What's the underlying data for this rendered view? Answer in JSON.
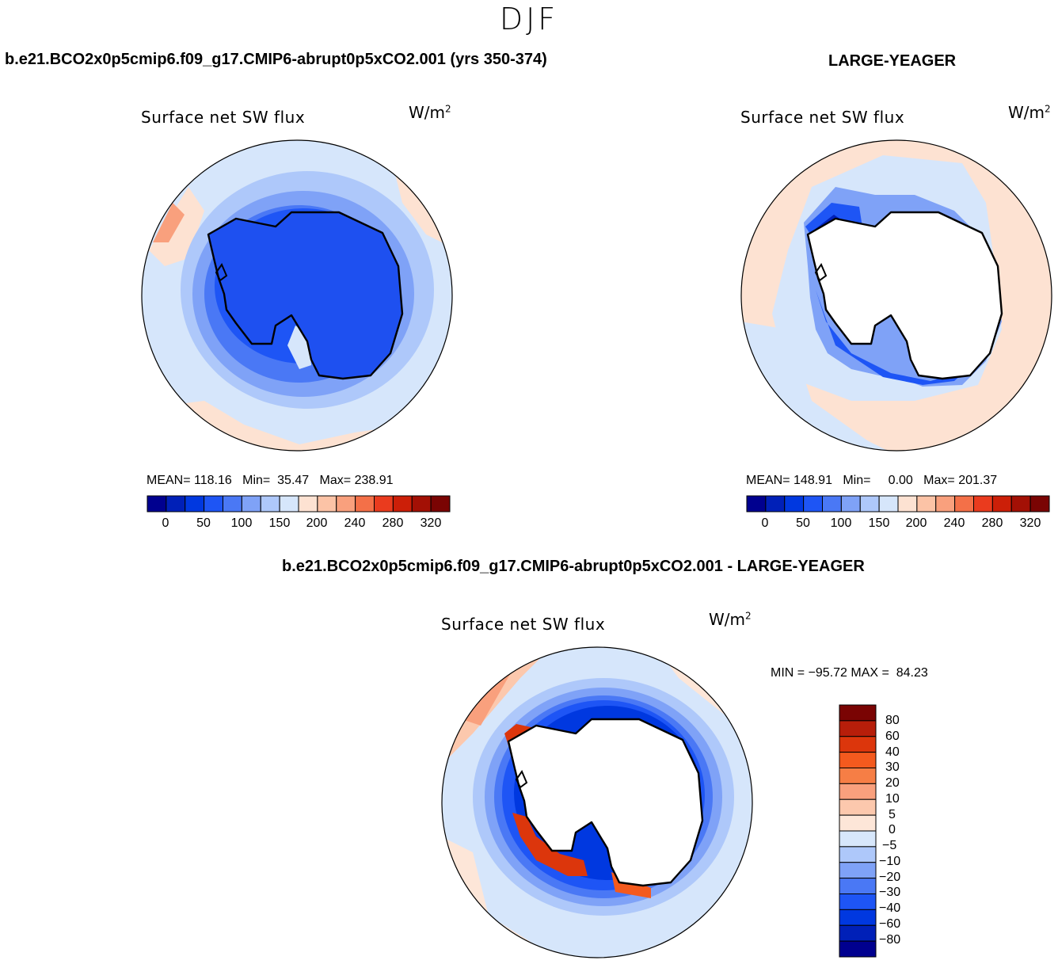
{
  "figure": {
    "season": "DJF",
    "diff_title": "b.e21.BCO2x0p5cmip6.f09_g17.CMIP6-abrupt0p5xCO2.001 - LARGE-YEAGER"
  },
  "panels": [
    {
      "case": "b.e21.BCO2x0p5cmip6.f09_g17.CMIP6-abrupt0p5xCO2.001 (yrs 350-374)",
      "variable": "Surface net SW flux",
      "units_base": "W/m",
      "units_exp": "2",
      "stats": {
        "mean_label": "MEAN=",
        "mean": "118.16",
        "min_label": "Min=",
        "min": "35.47",
        "max_label": "Max=",
        "max": "238.91"
      },
      "colorbar_labels": [
        "0",
        "50",
        "100",
        "150",
        "200",
        "240",
        "280",
        "320"
      ]
    },
    {
      "case": "LARGE-YEAGER",
      "variable": "Surface net SW flux",
      "units_base": "W/m",
      "units_exp": "2",
      "stats": {
        "mean_label": "MEAN=",
        "mean": "148.91",
        "min_label": "Min=",
        "min": "0.00",
        "max_label": "Max=",
        "max": "201.37"
      },
      "colorbar_labels": [
        "0",
        "50",
        "100",
        "150",
        "200",
        "240",
        "280",
        "320"
      ]
    },
    {
      "variable": "Surface net SW flux",
      "units_base": "W/m",
      "units_exp": "2",
      "minmax": "MIN = −95.72 MAX =  84.23",
      "colorbar_labels": [
        "80",
        "60",
        "40",
        "30",
        "20",
        "10",
        "5",
        "0",
        "−5",
        "−10",
        "−20",
        "−30",
        "−40",
        "−60",
        "−80"
      ]
    }
  ],
  "colors": {
    "abs_scale": [
      "#00008f",
      "#0020b8",
      "#0038e0",
      "#1e55f5",
      "#4a78f5",
      "#7fa2f7",
      "#aec8fa",
      "#d6e6fb",
      "#fde2d2",
      "#fcc3a6",
      "#f9a07d",
      "#f47048",
      "#ea3b1e",
      "#cc1f08",
      "#a31005",
      "#7a0403"
    ],
    "diff_scale": [
      "#7a0403",
      "#b71e0a",
      "#dc360c",
      "#f45a1e",
      "#f67e45",
      "#f9a07d",
      "#fcc8ad",
      "#fde6d8",
      "#d7e7fb",
      "#aec8fa",
      "#7fa2f7",
      "#4a78f5",
      "#1e55f5",
      "#0038e0",
      "#0020b8",
      "#00008f"
    ],
    "land": "#1e50f0",
    "coast": "#000000"
  }
}
